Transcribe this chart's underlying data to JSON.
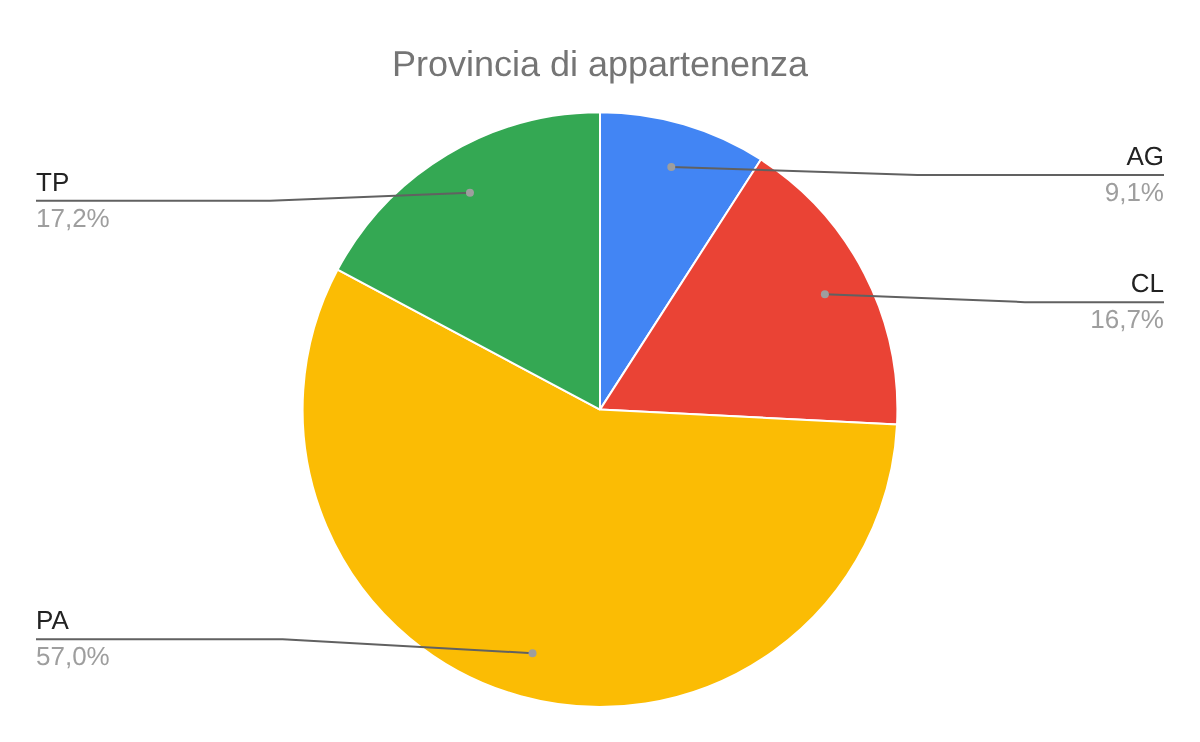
{
  "chart_data": {
    "type": "pie",
    "title": "Provincia di appartenenza",
    "categories": [
      "AG",
      "CL",
      "PA",
      "TP"
    ],
    "values": [
      9.1,
      16.7,
      57.0,
      17.2
    ],
    "value_labels": [
      "9,1%",
      "16,7%",
      "57,0%",
      "17,2%"
    ],
    "colors": [
      "#4285f4",
      "#ea4335",
      "#fbbc04",
      "#34a853"
    ],
    "legend": false
  }
}
